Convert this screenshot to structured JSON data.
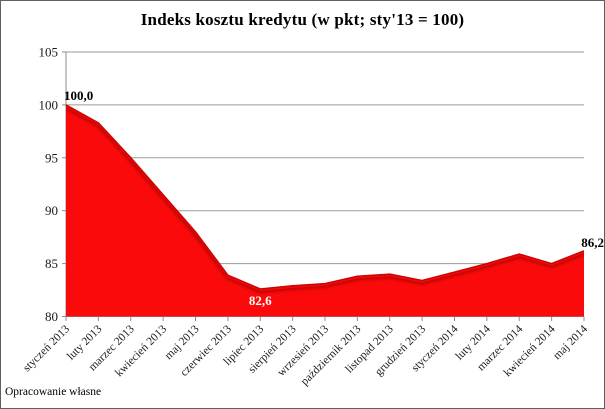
{
  "chart_data": {
    "type": "area",
    "title": "Indeks kosztu kredytu (w pkt; sty'13 = 100)",
    "source_note": "Opracowanie własne",
    "categories": [
      "styczeń 2013",
      "luty 2013",
      "marzec 2013",
      "kwiecień 2013",
      "maj 2013",
      "czerwiec 2013",
      "lipiec 2013",
      "sierpień 2013",
      "wrzesień 2013",
      "październik 2013",
      "listopad 2013",
      "grudzień 2013",
      "styczeń 2014",
      "luty 2014",
      "marzec 2014",
      "kwiecień 2014",
      "maj 2014"
    ],
    "values": [
      100.0,
      98.3,
      95.0,
      91.5,
      88.0,
      83.9,
      82.6,
      82.9,
      83.1,
      83.8,
      84.0,
      83.4,
      84.2,
      85.0,
      85.9,
      85.0,
      86.2
    ],
    "ylim": [
      80,
      105
    ],
    "yticks": [
      105,
      100,
      95,
      90,
      85,
      80
    ],
    "grid": true,
    "legend": "none",
    "series_name": "Indeks kosztu kredytu",
    "series_fill_color": "#fa0a0a",
    "series_edge_color": "#cc0404",
    "grid_color": "#9a9a9a",
    "axis_color": "#8c8c8c",
    "point_labels": [
      {
        "index": 0,
        "text": "100,0",
        "color": "#000000",
        "position": "above-left"
      },
      {
        "index": 6,
        "text": "82,6",
        "color": "#ffffff",
        "position": "below"
      },
      {
        "index": 16,
        "text": "86,2",
        "color": "#000000",
        "position": "above-right"
      }
    ]
  }
}
